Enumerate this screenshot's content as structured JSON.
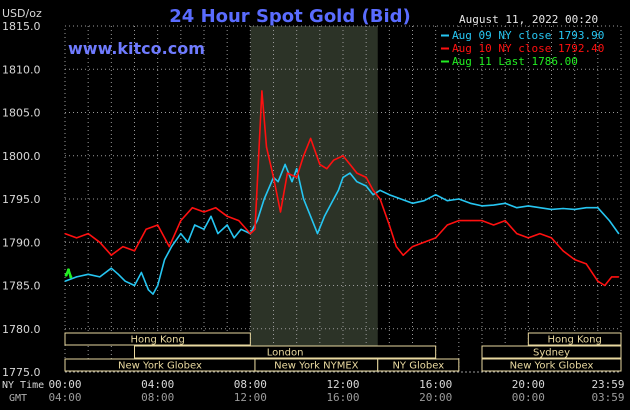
{
  "header": {
    "title": "24 Hour Spot Gold (Bid)",
    "unit": "USD/oz",
    "website": "www.kitco.com",
    "timestamp": "August 11, 2022 00:20"
  },
  "colors": {
    "background": "#000000",
    "title": "#5a6cff",
    "website": "#6f7bff",
    "grid": "#9a9a9a",
    "highlight_band": "#2c3327",
    "session_box": "#e9d9a0",
    "axis_text": "#d8d8d8",
    "series_aug09": "#26c6f2",
    "series_aug10": "#ff1010",
    "series_aug11": "#22ee22"
  },
  "legend": {
    "position": "top-right",
    "items": [
      {
        "label": "Aug 09 NY close 1793.90",
        "color": "#26c6f2"
      },
      {
        "label": "Aug 10 NY close 1792.40",
        "color": "#ff1010"
      },
      {
        "label": "Aug 11 Last 1786.00",
        "color": "#22ee22"
      }
    ]
  },
  "sessions": [
    {
      "label": "Hong Kong",
      "row": 0,
      "start": -4,
      "end": 8
    },
    {
      "label": "London",
      "row": 1,
      "start": 3,
      "end": 16
    },
    {
      "label": "New York Globex",
      "row": 2,
      "start": 0,
      "end": 8.2
    },
    {
      "label": "New York NYMEX",
      "row": 2,
      "start": 8.2,
      "end": 13.5
    },
    {
      "label": "NY Globex",
      "row": 2,
      "start": 13.5,
      "end": 17
    },
    {
      "label": "Hong Kong",
      "row": 0,
      "start": 20,
      "end": 24
    },
    {
      "label": "Sydney",
      "row": 1,
      "start": 18,
      "end": 24
    },
    {
      "label": "New York Globex",
      "row": 2,
      "start": 18,
      "end": 24
    }
  ],
  "chart_data": {
    "type": "line",
    "title": "24 Hour Spot Gold (Bid)",
    "ylabel": "USD/oz",
    "xlim": [
      0,
      24
    ],
    "ylim": [
      1775,
      1815
    ],
    "yticks": [
      1775,
      1780,
      1785,
      1790,
      1795,
      1800,
      1805,
      1810,
      1815
    ],
    "ytick_labels": [
      "1775.0",
      "1780.0",
      "1785.0",
      "1790.0",
      "1795.0",
      "1800.0",
      "1805.0",
      "1810.0",
      "1815.0"
    ],
    "x_ny_ticks": [
      "00:00",
      "04:00",
      "08:00",
      "12:00",
      "16:00",
      "20:00",
      "23:59"
    ],
    "x_gmt_ticks": [
      "04:00",
      "08:00",
      "12:00",
      "16:00",
      "20:00",
      "00:00",
      "03:59"
    ],
    "x_tick_hours": [
      0,
      4,
      8,
      12,
      16,
      20,
      24
    ],
    "x_row_labels": [
      "NY Time",
      "GMT"
    ],
    "grid": true,
    "highlight_band_hours": [
      8.0,
      13.5
    ],
    "series": [
      {
        "name": "Aug 09 NY close 1793.90",
        "color": "#26c6f2",
        "x": [
          0,
          0.5,
          1.0,
          1.5,
          2.0,
          2.3,
          2.6,
          3.0,
          3.3,
          3.6,
          3.8,
          4.0,
          4.3,
          4.6,
          5.0,
          5.3,
          5.6,
          6.0,
          6.3,
          6.6,
          7.0,
          7.3,
          7.6,
          8.0,
          8.3,
          8.6,
          9.0,
          9.2,
          9.5,
          9.8,
          10.0,
          10.3,
          10.6,
          10.9,
          11.2,
          11.5,
          11.8,
          12.0,
          12.3,
          12.6,
          13.0,
          13.3,
          13.6,
          14.0,
          14.5,
          15.0,
          15.5,
          16.0,
          16.5,
          17.0,
          17.5,
          18.0,
          18.5,
          19.0,
          19.5,
          20.0,
          20.5,
          21.0,
          21.5,
          22.0,
          22.5,
          23.0,
          23.5,
          23.9
        ],
        "values": [
          1785.5,
          1786.0,
          1786.3,
          1786.0,
          1787.0,
          1786.3,
          1785.5,
          1785.0,
          1786.5,
          1784.5,
          1784.0,
          1785.0,
          1788.0,
          1789.5,
          1791.0,
          1790.0,
          1792.0,
          1791.5,
          1793.0,
          1791.0,
          1792.0,
          1790.5,
          1791.5,
          1791.0,
          1792.5,
          1795.0,
          1797.5,
          1797.0,
          1799.0,
          1797.0,
          1798.5,
          1795.0,
          1793.0,
          1791.0,
          1793.0,
          1794.5,
          1796.0,
          1797.5,
          1798.0,
          1797.0,
          1796.5,
          1795.5,
          1796.0,
          1795.5,
          1795.0,
          1794.5,
          1794.8,
          1795.5,
          1794.8,
          1795.0,
          1794.5,
          1794.2,
          1794.3,
          1794.5,
          1794.0,
          1794.2,
          1794.0,
          1793.8,
          1793.9,
          1793.8,
          1794.0,
          1794.0,
          1792.5,
          1791.0
        ]
      },
      {
        "name": "Aug 10 NY close 1792.40",
        "color": "#ff1010",
        "x": [
          0,
          0.5,
          1.0,
          1.5,
          2.0,
          2.5,
          3.0,
          3.5,
          4.0,
          4.5,
          5.0,
          5.5,
          6.0,
          6.5,
          7.0,
          7.5,
          8.0,
          8.2,
          8.5,
          8.7,
          9.0,
          9.3,
          9.6,
          10.0,
          10.3,
          10.6,
          11.0,
          11.3,
          11.6,
          12.0,
          12.3,
          12.6,
          13.0,
          13.3,
          13.6,
          14.0,
          14.3,
          14.6,
          15.0,
          15.5,
          16.0,
          16.5,
          17.0,
          17.5,
          18.0,
          18.5,
          19.0,
          19.5,
          20.0,
          20.5,
          21.0,
          21.5,
          22.0,
          22.5,
          23.0,
          23.3,
          23.6,
          23.9
        ],
        "values": [
          1791.0,
          1790.5,
          1791.0,
          1790.0,
          1788.5,
          1789.5,
          1789.0,
          1791.5,
          1792.0,
          1789.5,
          1792.5,
          1794.0,
          1793.5,
          1794.0,
          1793.0,
          1792.5,
          1791.0,
          1791.5,
          1807.5,
          1801.0,
          1797.5,
          1793.5,
          1798.0,
          1797.5,
          1800.0,
          1802.0,
          1799.0,
          1798.5,
          1799.5,
          1800.0,
          1799.0,
          1798.0,
          1797.5,
          1796.0,
          1795.0,
          1792.0,
          1789.5,
          1788.5,
          1789.5,
          1790.0,
          1790.5,
          1792.0,
          1792.5,
          1792.5,
          1792.5,
          1792.0,
          1792.5,
          1791.0,
          1790.5,
          1791.0,
          1790.5,
          1789.0,
          1788.0,
          1787.5,
          1785.5,
          1785.0,
          1786.0,
          1786.0
        ]
      },
      {
        "name": "Aug 11 Last 1786.00",
        "color": "#22ee22",
        "x": [
          0.05,
          0.15,
          0.25
        ],
        "values": [
          1786.2,
          1786.8,
          1786.0
        ]
      }
    ]
  }
}
